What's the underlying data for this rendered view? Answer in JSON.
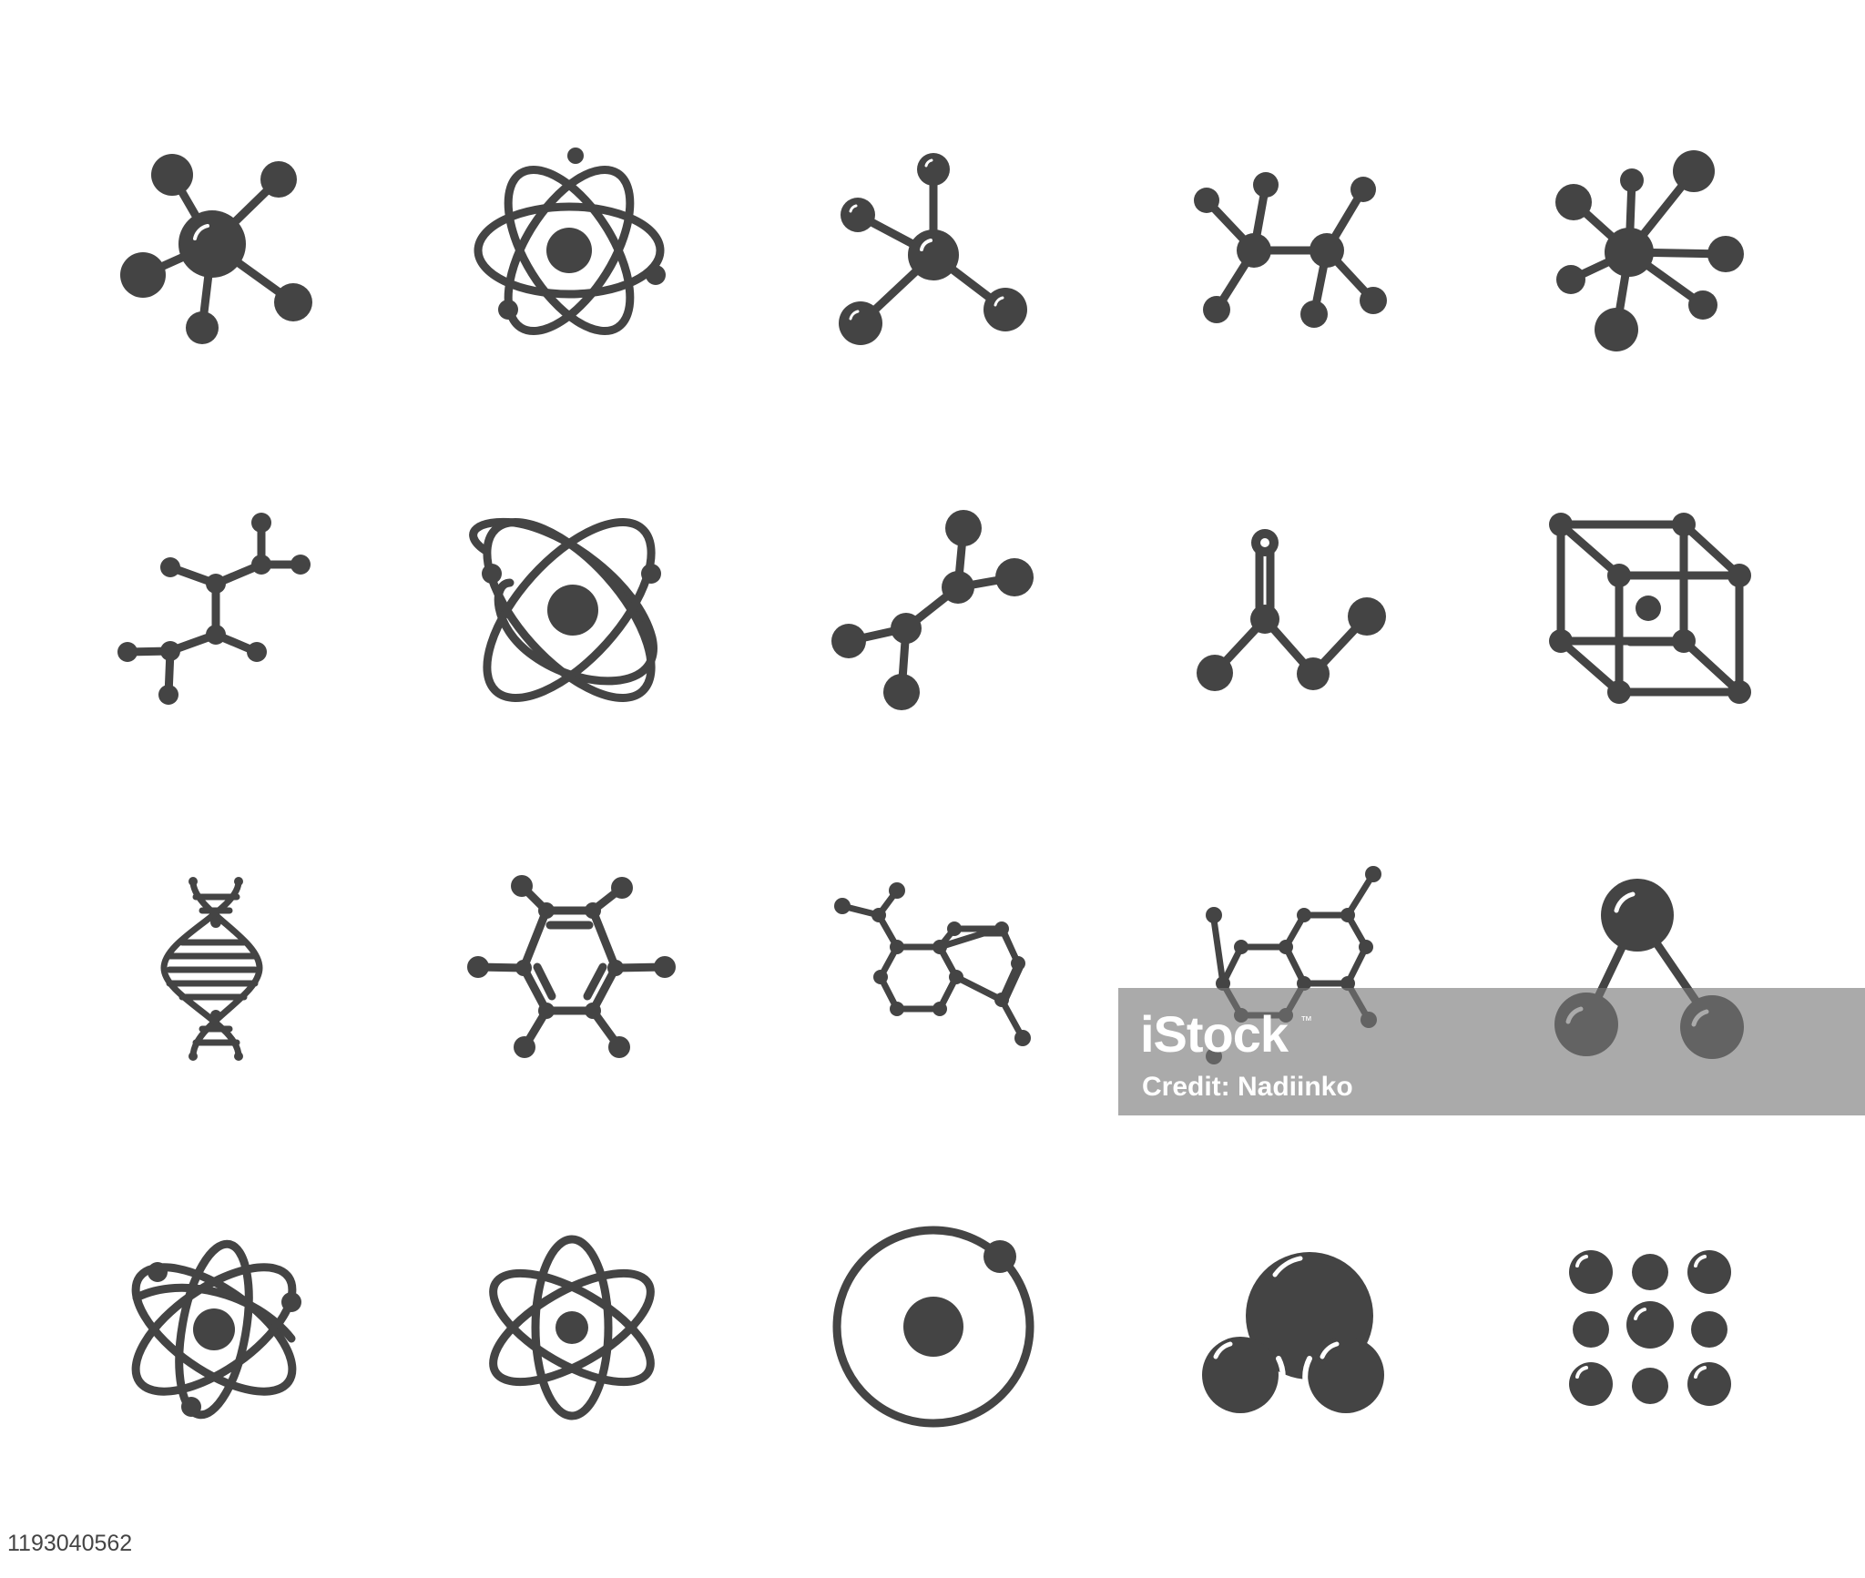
{
  "colors": {
    "icon": "#444444",
    "background": "#ffffff",
    "watermark_bg": "#767676",
    "watermark_text": "#ffffff"
  },
  "icons": [
    {
      "row": 1,
      "col": 1,
      "name": "molecule-hub-icon"
    },
    {
      "row": 1,
      "col": 2,
      "name": "atom-orbits-icon"
    },
    {
      "row": 1,
      "col": 3,
      "name": "tetrahedral-molecule-icon"
    },
    {
      "row": 1,
      "col": 4,
      "name": "ethane-molecule-icon"
    },
    {
      "row": 1,
      "col": 5,
      "name": "molecule-star-icon"
    },
    {
      "row": 2,
      "col": 1,
      "name": "branched-chain-icon"
    },
    {
      "row": 2,
      "col": 2,
      "name": "atom-two-orbits-icon"
    },
    {
      "row": 2,
      "col": 3,
      "name": "zigzag-molecule-icon"
    },
    {
      "row": 2,
      "col": 4,
      "name": "carbonyl-molecule-icon"
    },
    {
      "row": 2,
      "col": 5,
      "name": "crystal-lattice-cube-icon"
    },
    {
      "row": 3,
      "col": 1,
      "name": "dna-helix-icon"
    },
    {
      "row": 3,
      "col": 2,
      "name": "benzene-ring-icon"
    },
    {
      "row": 3,
      "col": 3,
      "name": "naphthalene-icon"
    },
    {
      "row": 3,
      "col": 4,
      "name": "fused-rings-icon"
    },
    {
      "row": 3,
      "col": 5,
      "name": "water-molecule-ball-icon"
    },
    {
      "row": 4,
      "col": 1,
      "name": "atom-complex-orbits-icon"
    },
    {
      "row": 4,
      "col": 2,
      "name": "atom-three-orbits-icon"
    },
    {
      "row": 4,
      "col": 3,
      "name": "hydrogen-atom-icon"
    },
    {
      "row": 4,
      "col": 4,
      "name": "water-molecule-spacefill-icon"
    },
    {
      "row": 4,
      "col": 5,
      "name": "atomic-packing-icon"
    }
  ],
  "watermark": {
    "logo": "iStock",
    "tm": "™",
    "credit": "Credit: Nadiinko"
  },
  "stock_id": "1193040562"
}
